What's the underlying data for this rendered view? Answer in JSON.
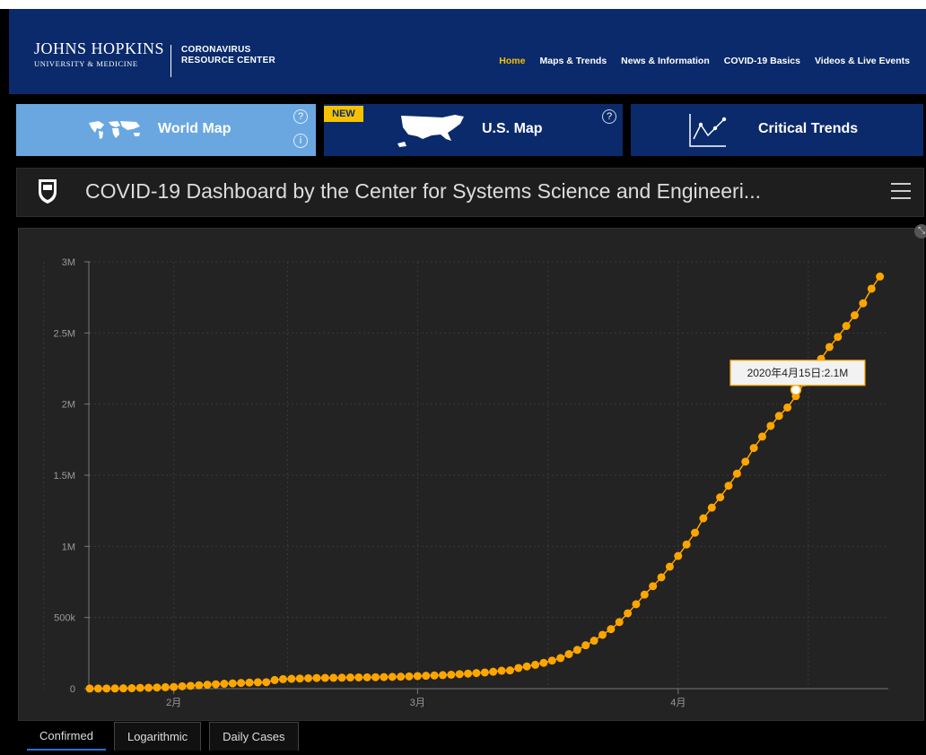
{
  "header": {
    "logo_name": "JOHNS HOPKINS",
    "logo_sub": "UNIVERSITY & MEDICINE",
    "resource_line1": "CORONAVIRUS",
    "resource_line2": "RESOURCE CENTER",
    "nav": [
      "Home",
      "Maps & Trends",
      "News & Information",
      "COVID-19 Basics",
      "Videos & Live Events"
    ],
    "active_nav": "Home"
  },
  "tiles": {
    "world_map": "World Map",
    "us_map": "U.S. Map",
    "new_badge": "NEW",
    "critical_trends": "Critical Trends",
    "help_glyph": "?",
    "info_glyph": "i"
  },
  "dashboard": {
    "title": "COVID-19 Dashboard by the Center for Systems Science and Engineeri..."
  },
  "tabs": [
    "Confirmed",
    "Logarithmic",
    "Daily Cases"
  ],
  "active_tab": "Confirmed",
  "colors": {
    "header_bg": "#0a2a6b",
    "accent_yellow": "#f6c200",
    "world_tile": "#6aa7e0",
    "series": "#ffa500",
    "tab_underline": "#2b6fd6"
  },
  "chart_data": {
    "type": "line",
    "title": "",
    "xlabel": "",
    "ylabel": "",
    "x_start": "2020-01-22",
    "x_end": "2020-04-26",
    "x_ticks": [
      {
        "date": "2020-02-01",
        "label": "2月"
      },
      {
        "date": "2020-03-01",
        "label": "3月"
      },
      {
        "date": "2020-04-01",
        "label": "4月"
      }
    ],
    "y_ticks": [
      {
        "value": 0,
        "label": "0"
      },
      {
        "value": 500000,
        "label": "500k"
      },
      {
        "value": 1000000,
        "label": "1M"
      },
      {
        "value": 1500000,
        "label": "1.5M"
      },
      {
        "value": 2000000,
        "label": "2M"
      },
      {
        "value": 2500000,
        "label": "2.5M"
      },
      {
        "value": 3000000,
        "label": "3M"
      }
    ],
    "ylim": [
      0,
      3000000
    ],
    "grid": true,
    "series": [
      {
        "values": [
          555,
          654,
          941,
          1434,
          2118,
          2927,
          5578,
          6166,
          8234,
          9927,
          12038,
          16787,
          19881,
          23892,
          27635,
          30817,
          34391,
          37120,
          40150,
          42762,
          44802,
          45221,
          60368,
          66885,
          69030,
          71224,
          73258,
          75136,
          75639,
          76197,
          76819,
          78572,
          78958,
          79561,
          80406,
          81388,
          82746,
          84112,
          86011,
          88369,
          90306,
          92840,
          95120,
          97886,
          101801,
          105847,
          109821,
          113590,
          118620,
          125875,
          128352,
          145205,
          156101,
          167454,
          181574,
          197102,
          214821,
          242570,
          272208,
          304507,
          336953,
          378235,
          418045,
          467653,
          529591,
          593291,
          660706,
          720117,
          782389,
          857487,
          932605,
          1013466,
          1095917,
          1197405,
          1272115,
          1345101,
          1426096,
          1511104,
          1595350,
          1691719,
          1771514,
          1846679,
          1917320,
          1976191,
          2056054,
          2152437,
          2240190,
          2317758,
          2401378,
          2472259,
          2549123,
          2624000,
          2708885,
          2811193,
          2896733
        ]
      }
    ],
    "tooltip": {
      "date": "2020-04-15",
      "text": "2020年4月15日:2.1M",
      "value": 2100000
    }
  }
}
